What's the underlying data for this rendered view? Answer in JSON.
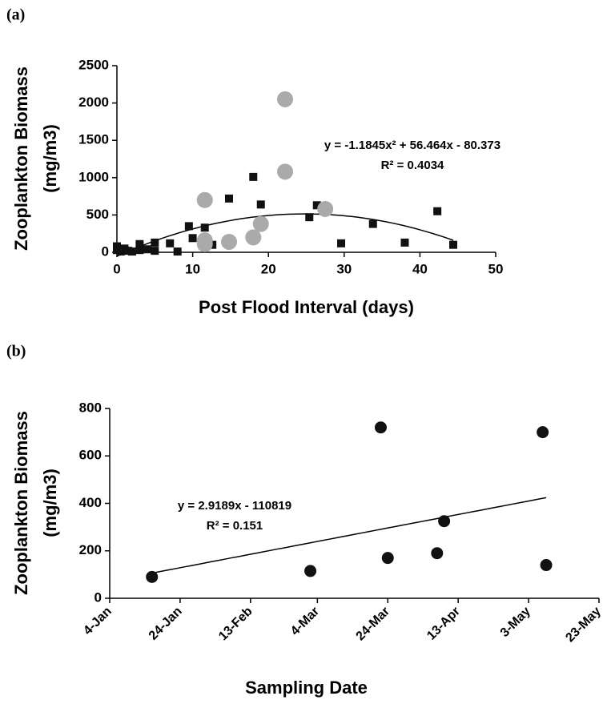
{
  "chart_data": [
    {
      "type": "scatter",
      "panel_label": "(a)",
      "ylabel": [
        "Zooplankton Biomass",
        "(mg/m3)"
      ],
      "xlabel": "Post Flood Interval (days)",
      "xlim": [
        0,
        50
      ],
      "xticks": [
        0,
        10,
        20,
        30,
        40,
        50
      ],
      "ylim": [
        0,
        2500
      ],
      "yticks": [
        0,
        500,
        1000,
        1500,
        2000,
        2500
      ],
      "trendline": "poly2",
      "annotations": [
        "y = -1.1845x² + 56.464x - 80.373",
        "R² = 0.4034"
      ],
      "series": [
        {
          "marker": "square",
          "color": "#111111",
          "x": [
            0,
            0,
            0.5,
            1,
            1.5,
            2,
            3,
            3,
            4,
            5,
            5,
            7,
            8,
            9.5,
            10,
            11.6,
            12.6,
            14.8,
            18,
            19,
            25.4,
            26.4,
            29.6,
            33.8,
            38,
            42.3,
            44.4
          ],
          "values": [
            30,
            80,
            10,
            50,
            20,
            10,
            110,
            30,
            40,
            130,
            20,
            120,
            10,
            350,
            190,
            330,
            100,
            720,
            1010,
            640,
            470,
            630,
            120,
            380,
            130,
            550,
            100
          ]
        },
        {
          "marker": "circle",
          "color": "#aaaaaa",
          "x": [
            11.6,
            11.6,
            11.6,
            14.8,
            18,
            19,
            22.2,
            22.2,
            27.5
          ],
          "values": [
            700,
            160,
            110,
            140,
            200,
            380,
            2050,
            1080,
            580
          ]
        }
      ]
    },
    {
      "type": "scatter",
      "panel_label": "(b)",
      "ylabel": [
        "Zooplankton Biomass",
        "(mg/m3)"
      ],
      "xlabel": "Sampling Date",
      "xlim": [
        4,
        143
      ],
      "xticks": [
        {
          "value": 4,
          "label": "4-Jan"
        },
        {
          "value": 24,
          "label": "24-Jan"
        },
        {
          "value": 44,
          "label": "13-Feb"
        },
        {
          "value": 63,
          "label": "4-Mar"
        },
        {
          "value": 83,
          "label": "24-Mar"
        },
        {
          "value": 103,
          "label": "13-Apr"
        },
        {
          "value": 123,
          "label": "3-May"
        },
        {
          "value": 143,
          "label": "23-May"
        }
      ],
      "ylim": [
        0,
        800
      ],
      "yticks": [
        0,
        200,
        400,
        600,
        800
      ],
      "trendline": "linear",
      "annotations": [
        "y = 2.9189x - 110819",
        "R² = 0.151"
      ],
      "series": [
        {
          "marker": "circle",
          "color": "#111111",
          "x": [
            16,
            61,
            81,
            83,
            97,
            99,
            127,
            128
          ],
          "values": [
            90,
            115,
            720,
            170,
            190,
            325,
            700,
            140
          ]
        }
      ]
    }
  ]
}
